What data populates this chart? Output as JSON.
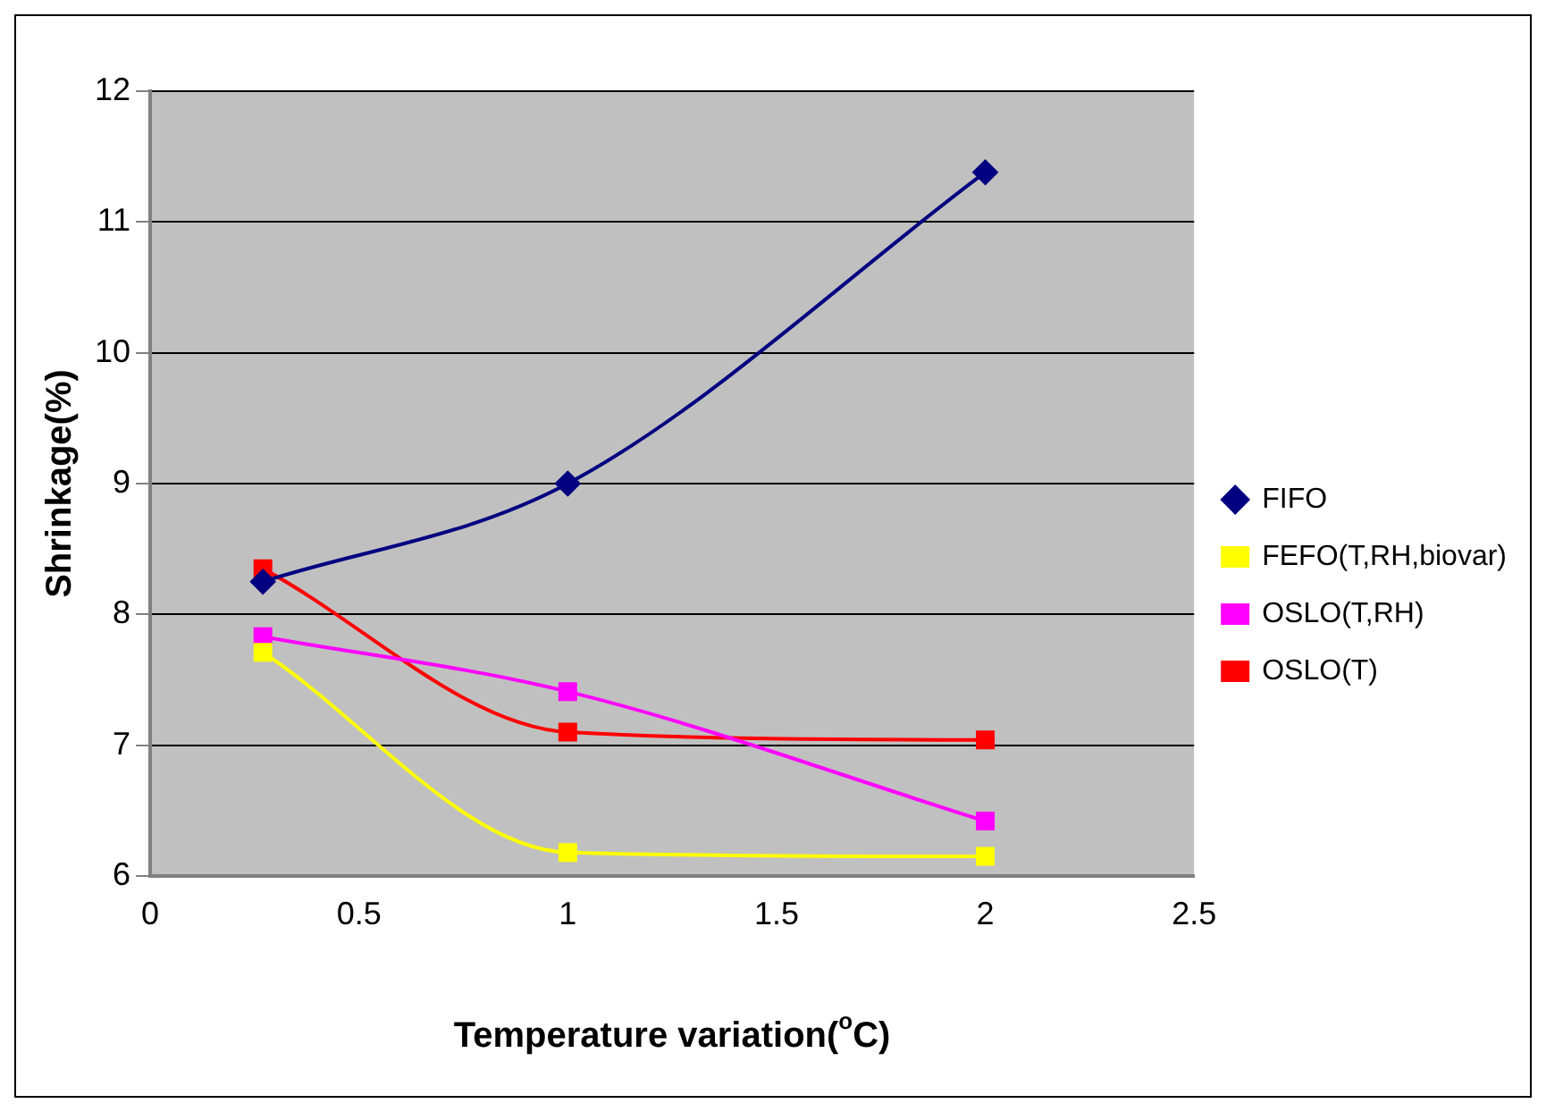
{
  "chart_data": {
    "type": "line",
    "xlabel": "Temperature variation($^{o}$C)",
    "ylabel": "Shrinkage(%)",
    "xlim": [
      0,
      2.5
    ],
    "xticks": [
      0,
      0.5,
      1,
      1.5,
      2,
      2.5
    ],
    "ylim": [
      6,
      12
    ],
    "yticks": [
      6,
      7,
      8,
      9,
      10,
      11,
      12
    ],
    "grid": "y",
    "legend": "right",
    "series": [
      {
        "name": "FIFO",
        "color": "#000080",
        "marker": "diamond",
        "x": [
          0.27,
          1,
          2
        ],
        "values": [
          8.25,
          9.0,
          11.38
        ]
      },
      {
        "name": "FEFO(T,RH,biovar)",
        "color": "#ffff00",
        "marker": "square",
        "x": [
          0.27,
          1,
          2
        ],
        "values": [
          7.71,
          6.18,
          6.15
        ]
      },
      {
        "name": "OSLO(T,RH)",
        "color": "#ff00ff",
        "marker": "square",
        "x": [
          0.27,
          1,
          2
        ],
        "values": [
          7.83,
          7.41,
          6.42
        ]
      },
      {
        "name": "OSLO(T)",
        "color": "#ff0000",
        "marker": "square",
        "x": [
          0.27,
          1,
          2
        ],
        "values": [
          8.35,
          7.1,
          7.04
        ]
      }
    ]
  }
}
